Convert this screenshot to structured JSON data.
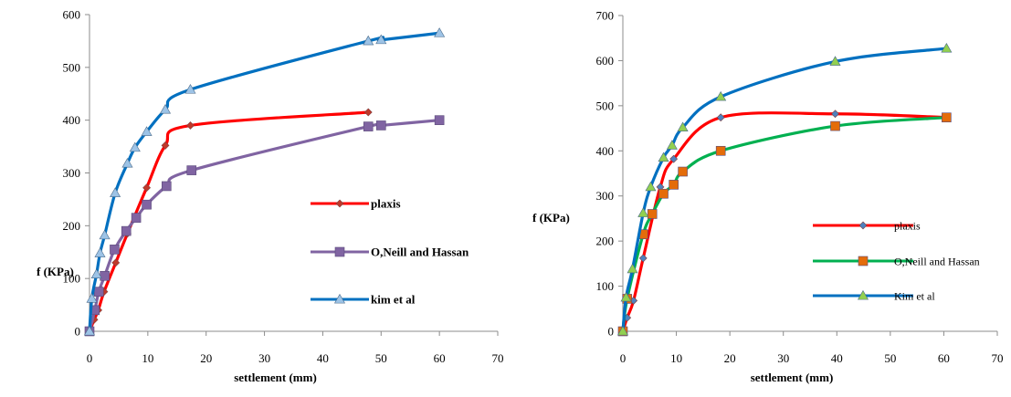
{
  "chart_data": [
    {
      "type": "line",
      "xlabel": "settlement (mm)",
      "ylabel": "f (KPa)",
      "xlim": [
        0,
        70
      ],
      "ylim": [
        0,
        600
      ],
      "xticks": [
        0,
        10,
        20,
        30,
        40,
        50,
        60,
        70
      ],
      "yticks": [
        0,
        100,
        200,
        300,
        400,
        500,
        600
      ],
      "grid": false,
      "legend_position": "center-right",
      "series": [
        {
          "name": "plaxis",
          "color": "#ff0000",
          "marker": "diamond",
          "marker_color": "#c0392b",
          "x": [
            0,
            0.8,
            1.5,
            2.5,
            4.5,
            6.5,
            9.8,
            13,
            17.3,
            47.8
          ],
          "y": [
            0,
            22,
            40,
            75,
            130,
            185,
            272,
            352,
            390,
            415
          ]
        },
        {
          "name": "O,Neill and Hassan",
          "color": "#8064a2",
          "marker": "square",
          "marker_color": "#8064a2",
          "x": [
            0,
            0.9,
            1.6,
            2.6,
            4.3,
            6.3,
            8,
            9.8,
            13.2,
            17.5,
            47.8,
            50,
            60
          ],
          "y": [
            0,
            40,
            75,
            105,
            155,
            190,
            215,
            240,
            275,
            305,
            388,
            390,
            400
          ]
        },
        {
          "name": "kim et al",
          "color": "#0070c0",
          "marker": "triangle",
          "marker_color": "#9dc3e6",
          "x": [
            0,
            0.4,
            1.2,
            1.8,
            2.6,
            4.4,
            6.5,
            7.8,
            9.8,
            13,
            17.3,
            47.8,
            50,
            60
          ],
          "y": [
            0,
            62,
            108,
            148,
            182,
            262,
            318,
            348,
            378,
            420,
            458,
            550,
            552,
            565
          ]
        }
      ]
    },
    {
      "type": "line",
      "xlabel": "settlement (mm)",
      "ylabel": "f (KPa)",
      "xlim": [
        0,
        70
      ],
      "ylim": [
        0,
        700
      ],
      "xticks": [
        0,
        10,
        20,
        30,
        40,
        50,
        60,
        70
      ],
      "yticks": [
        0,
        100,
        200,
        300,
        400,
        500,
        600,
        700
      ],
      "grid": false,
      "legend_position": "bottom-right",
      "series": [
        {
          "name": "plaxis",
          "color": "#ff0000",
          "marker": "diamond",
          "marker_color": "#4f81bd",
          "x": [
            0,
            0.8,
            2,
            3.8,
            7,
            9.5,
            18.3,
            39.7,
            60.5
          ],
          "y": [
            0,
            30,
            68,
            162,
            320,
            382,
            474,
            482,
            474
          ]
        },
        {
          "name": "O,Neill and Hassan",
          "color": "#00b050",
          "marker": "square",
          "marker_color": "#e46c0a",
          "x": [
            0,
            0.8,
            3.8,
            5.5,
            7.6,
            9.5,
            11.2,
            18.3,
            39.7,
            60.5
          ],
          "y": [
            0,
            72,
            215,
            260,
            305,
            325,
            354,
            400,
            455,
            474
          ]
        },
        {
          "name": "Kim et al",
          "color": "#0070c0",
          "marker": "triangle",
          "marker_color": "#92d050",
          "x": [
            0,
            0.6,
            1.8,
            3.8,
            5.2,
            7.6,
            9.2,
            11.2,
            18.3,
            39.7,
            60.5
          ],
          "y": [
            0,
            75,
            138,
            262,
            320,
            385,
            412,
            452,
            520,
            598,
            627
          ]
        }
      ]
    }
  ]
}
